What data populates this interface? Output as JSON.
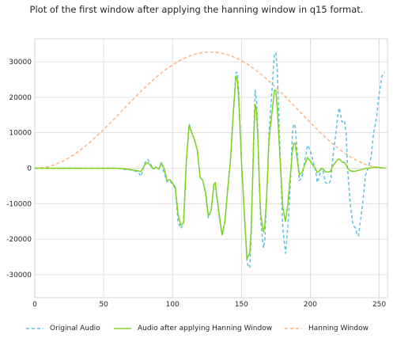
{
  "chart_data": {
    "type": "line",
    "title": "Plot of the first window after applying the hanning window in q15 format.",
    "xlim": [
      0,
      256
    ],
    "ylim": [
      -36500,
      36500
    ],
    "xticks": [
      0,
      50,
      100,
      150,
      200,
      250
    ],
    "yticks": [
      -30000,
      -20000,
      -10000,
      0,
      10000,
      20000,
      30000
    ],
    "grid": true,
    "legend_position": "bottom",
    "series": [
      {
        "name": "Original Audio",
        "color": "#5bc0de",
        "style": "dashed",
        "points": [
          [
            0,
            0
          ],
          [
            20,
            0
          ],
          [
            40,
            0
          ],
          [
            60,
            0
          ],
          [
            65,
            -300
          ],
          [
            70,
            -500
          ],
          [
            75,
            -1000
          ],
          [
            77,
            -2300
          ],
          [
            80,
            1500
          ],
          [
            82,
            2500
          ],
          [
            84,
            1200
          ],
          [
            86,
            -200
          ],
          [
            88,
            200
          ],
          [
            90,
            -300
          ],
          [
            92,
            1800
          ],
          [
            93,
            -300
          ],
          [
            96,
            -3800
          ],
          [
            98,
            -3500
          ],
          [
            100,
            -4500
          ],
          [
            102,
            -5800
          ],
          [
            104,
            -15000
          ],
          [
            106,
            -17000
          ],
          [
            108,
            -15500
          ],
          [
            110,
            2000
          ],
          [
            112,
            12500
          ],
          [
            114,
            10000
          ],
          [
            116,
            8000
          ],
          [
            118,
            5000
          ],
          [
            120,
            -2500
          ],
          [
            122,
            -3500
          ],
          [
            124,
            -7500
          ],
          [
            126,
            -14000
          ],
          [
            128,
            -12000
          ],
          [
            130,
            -4500
          ],
          [
            131,
            -4000
          ],
          [
            132,
            -7500
          ],
          [
            134,
            -14000
          ],
          [
            136,
            -19000
          ],
          [
            138,
            -15000
          ],
          [
            140,
            -6000
          ],
          [
            142,
            2000
          ],
          [
            144,
            15000
          ],
          [
            146,
            27000
          ],
          [
            147,
            27000
          ],
          [
            148,
            22000
          ],
          [
            150,
            2000
          ],
          [
            152,
            -12000
          ],
          [
            154,
            -26000
          ],
          [
            155,
            -28000
          ],
          [
            156,
            -28000
          ],
          [
            157,
            -20000
          ],
          [
            158,
            -5000
          ],
          [
            159,
            10000
          ],
          [
            160,
            22000
          ],
          [
            161,
            19000
          ],
          [
            162,
            10000
          ],
          [
            163,
            -5000
          ],
          [
            164,
            -15000
          ],
          [
            166,
            -22500
          ],
          [
            167,
            -20000
          ],
          [
            168,
            -10000
          ],
          [
            169,
            -2000
          ],
          [
            170,
            10000
          ],
          [
            172,
            21000
          ],
          [
            174,
            32500
          ],
          [
            175,
            32500
          ],
          [
            176,
            28000
          ],
          [
            178,
            5000
          ],
          [
            180,
            -17000
          ],
          [
            182,
            -24000
          ],
          [
            184,
            -15000
          ],
          [
            185,
            -8000
          ],
          [
            186,
            0
          ],
          [
            187,
            10000
          ],
          [
            188,
            12500
          ],
          [
            189,
            12000
          ],
          [
            190,
            7000
          ],
          [
            192,
            -3500
          ],
          [
            194,
            -2500
          ],
          [
            195,
            0
          ],
          [
            196,
            2000
          ],
          [
            198,
            6500
          ],
          [
            200,
            5000
          ],
          [
            202,
            2000
          ],
          [
            204,
            -1000
          ],
          [
            205,
            -4000
          ],
          [
            206,
            -3000
          ],
          [
            208,
            0
          ],
          [
            209,
            -200
          ],
          [
            211,
            -4000
          ],
          [
            213,
            -4500
          ],
          [
            214,
            -4000
          ],
          [
            215,
            -3000
          ],
          [
            216,
            2000
          ],
          [
            218,
            8000
          ],
          [
            220,
            15000
          ],
          [
            221,
            17000
          ],
          [
            222,
            15000
          ],
          [
            223,
            13000
          ],
          [
            224,
            13500
          ],
          [
            225,
            13000
          ],
          [
            226,
            10000
          ],
          [
            227,
            0
          ],
          [
            229,
            -10000
          ],
          [
            231,
            -16000
          ],
          [
            233,
            -17000
          ],
          [
            234,
            -19000
          ],
          [
            235,
            -19000
          ],
          [
            236,
            -16000
          ],
          [
            238,
            -10000
          ],
          [
            240,
            -2000
          ],
          [
            242,
            0
          ],
          [
            244,
            3000
          ],
          [
            246,
            10000
          ],
          [
            248,
            14000
          ],
          [
            250,
            21000
          ],
          [
            252,
            26000
          ],
          [
            254,
            27000
          ]
        ]
      },
      {
        "name": "Audio after applying Hanning Window",
        "color": "#7ed321",
        "style": "solid",
        "points": [
          [
            0,
            0
          ],
          [
            20,
            0
          ],
          [
            40,
            0
          ],
          [
            60,
            0
          ],
          [
            64,
            -100
          ],
          [
            66,
            -200
          ],
          [
            70,
            -400
          ],
          [
            74,
            -700
          ],
          [
            77,
            -900
          ],
          [
            80,
            1000
          ],
          [
            82,
            1600
          ],
          [
            84,
            700
          ],
          [
            86,
            -200
          ],
          [
            88,
            300
          ],
          [
            90,
            -200
          ],
          [
            92,
            1500
          ],
          [
            94,
            -200
          ],
          [
            96,
            -3500
          ],
          [
            98,
            -3200
          ],
          [
            100,
            -4200
          ],
          [
            102,
            -5400
          ],
          [
            104,
            -13000
          ],
          [
            106,
            -16000
          ],
          [
            108,
            -15500
          ],
          [
            110,
            2000
          ],
          [
            112,
            12000
          ],
          [
            114,
            10000
          ],
          [
            116,
            8000
          ],
          [
            118,
            5000
          ],
          [
            120,
            -2500
          ],
          [
            122,
            -3500
          ],
          [
            124,
            -7000
          ],
          [
            126,
            -13500
          ],
          [
            128,
            -12000
          ],
          [
            130,
            -4500
          ],
          [
            131,
            -4000
          ],
          [
            132,
            -7500
          ],
          [
            134,
            -13500
          ],
          [
            136,
            -18800
          ],
          [
            138,
            -15000
          ],
          [
            140,
            -6000
          ],
          [
            142,
            2000
          ],
          [
            144,
            15000
          ],
          [
            146,
            26000
          ],
          [
            147,
            25000
          ],
          [
            148,
            20000
          ],
          [
            150,
            2000
          ],
          [
            152,
            -12000
          ],
          [
            154,
            -25500
          ],
          [
            156,
            -24000
          ],
          [
            157,
            -18000
          ],
          [
            158,
            -5000
          ],
          [
            159,
            10000
          ],
          [
            160,
            18000
          ],
          [
            161,
            16000
          ],
          [
            162,
            8000
          ],
          [
            163,
            -4000
          ],
          [
            164,
            -13000
          ],
          [
            166,
            -18000
          ],
          [
            167,
            -16000
          ],
          [
            168,
            -10000
          ],
          [
            169,
            -2000
          ],
          [
            170,
            8000
          ],
          [
            172,
            15000
          ],
          [
            174,
            22000
          ],
          [
            175,
            22000
          ],
          [
            176,
            17000
          ],
          [
            178,
            3000
          ],
          [
            180,
            -11000
          ],
          [
            182,
            -15000
          ],
          [
            184,
            -9000
          ],
          [
            185,
            -4000
          ],
          [
            186,
            0
          ],
          [
            187,
            5000
          ],
          [
            188,
            7000
          ],
          [
            189,
            7000
          ],
          [
            190,
            4000
          ],
          [
            192,
            -1800
          ],
          [
            194,
            -1200
          ],
          [
            195,
            0
          ],
          [
            196,
            1000
          ],
          [
            198,
            3000
          ],
          [
            200,
            2000
          ],
          [
            202,
            800
          ],
          [
            204,
            -300
          ],
          [
            205,
            -1200
          ],
          [
            206,
            -1000
          ],
          [
            208,
            0
          ],
          [
            209,
            -100
          ],
          [
            211,
            -1000
          ],
          [
            213,
            -1100
          ],
          [
            214,
            -1000
          ],
          [
            215,
            -700
          ],
          [
            216,
            500
          ],
          [
            218,
            1500
          ],
          [
            220,
            2500
          ],
          [
            221,
            2600
          ],
          [
            222,
            2200
          ],
          [
            223,
            1800
          ],
          [
            224,
            1700
          ],
          [
            225,
            1500
          ],
          [
            226,
            1000
          ],
          [
            227,
            0
          ],
          [
            229,
            -700
          ],
          [
            231,
            -900
          ],
          [
            233,
            -800
          ],
          [
            235,
            -600
          ],
          [
            238,
            -300
          ],
          [
            240,
            -50
          ],
          [
            242,
            0
          ],
          [
            244,
            100
          ],
          [
            246,
            300
          ],
          [
            248,
            300
          ],
          [
            250,
            200
          ],
          [
            252,
            100
          ],
          [
            255,
            0
          ]
        ]
      },
      {
        "name": "Hanning Window",
        "color": "#ffb380",
        "style": "dashed",
        "function": "hanning",
        "amplitude": 32767,
        "length": 256
      }
    ]
  }
}
